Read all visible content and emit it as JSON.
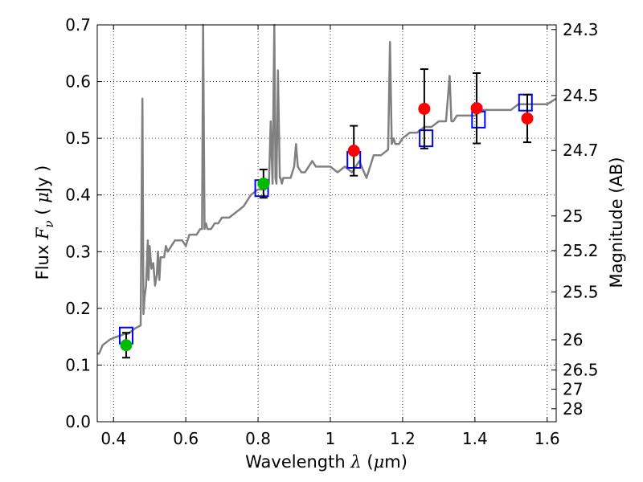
{
  "chart_data": {
    "type": "scatter",
    "xlabel": "Wavelength",
    "xlabel_symbol": "λ",
    "xlabel_unit_open": "(",
    "xlabel_unit_mu": "μ",
    "xlabel_unit_rest": "m)",
    "ylabel": "Flux",
    "ylabel_symbol": "F",
    "ylabel_subscript": "ν",
    "ylabel_unit_open": "(",
    "ylabel_unit_mu": "μ",
    "ylabel_unit_rest": "Jy )",
    "y2label": "Magnitude (AB)",
    "xlim": [
      0.355,
      1.625
    ],
    "ylim": [
      0.0,
      0.7
    ],
    "xticks": [
      {
        "value": 0.4,
        "label": "0.4"
      },
      {
        "value": 0.6,
        "label": "0.6"
      },
      {
        "value": 0.8,
        "label": "0.8"
      },
      {
        "value": 1.0,
        "label": "1"
      },
      {
        "value": 1.2,
        "label": "1.2"
      },
      {
        "value": 1.4,
        "label": "1.4"
      },
      {
        "value": 1.6,
        "label": "1.6"
      }
    ],
    "yticks": [
      {
        "value": 0.0,
        "label": "0.0"
      },
      {
        "value": 0.1,
        "label": "0.1"
      },
      {
        "value": 0.2,
        "label": "0.2"
      },
      {
        "value": 0.3,
        "label": "0.3"
      },
      {
        "value": 0.4,
        "label": "0.4"
      },
      {
        "value": 0.5,
        "label": "0.5"
      },
      {
        "value": 0.6,
        "label": "0.6"
      },
      {
        "value": 0.7,
        "label": "0.7"
      }
    ],
    "y2ticks": [
      {
        "mag": 24.3,
        "label": "24.3"
      },
      {
        "mag": 24.5,
        "label": "24.5"
      },
      {
        "mag": 24.7,
        "label": "24.7"
      },
      {
        "mag": 25.0,
        "label": "25"
      },
      {
        "mag": 25.2,
        "label": "25.2"
      },
      {
        "mag": 25.5,
        "label": "25.5"
      },
      {
        "mag": 26.0,
        "label": "26"
      },
      {
        "mag": 26.5,
        "label": "26.5"
      },
      {
        "mag": 27.0,
        "label": "27"
      },
      {
        "mag": 28.0,
        "label": "28"
      }
    ],
    "grid": true,
    "colors": {
      "spectrum": "#808080",
      "observed_optical": "#00bb00",
      "observed_nir": "#ff0000",
      "model": "#0000ff",
      "errorbar": "#000000"
    },
    "spectrum": {
      "x": [
        0.355,
        0.36,
        0.37,
        0.38,
        0.39,
        0.4,
        0.41,
        0.42,
        0.43,
        0.44,
        0.45,
        0.46,
        0.47,
        0.475,
        0.48,
        0.483,
        0.486,
        0.49,
        0.495,
        0.497,
        0.5,
        0.505,
        0.51,
        0.515,
        0.52,
        0.523,
        0.527,
        0.53,
        0.54,
        0.545,
        0.55,
        0.56,
        0.57,
        0.58,
        0.59,
        0.6,
        0.61,
        0.62,
        0.63,
        0.64,
        0.645,
        0.648,
        0.652,
        0.656,
        0.66,
        0.67,
        0.68,
        0.69,
        0.7,
        0.72,
        0.74,
        0.76,
        0.78,
        0.8,
        0.82,
        0.83,
        0.835,
        0.84,
        0.845,
        0.848,
        0.851,
        0.855,
        0.86,
        0.862,
        0.866,
        0.87,
        0.88,
        0.89,
        0.9,
        0.905,
        0.91,
        0.92,
        0.93,
        0.94,
        0.95,
        0.96,
        0.98,
        1.0,
        1.02,
        1.04,
        1.06,
        1.08,
        1.1,
        1.12,
        1.14,
        1.16,
        1.165,
        1.17,
        1.175,
        1.18,
        1.19,
        1.2,
        1.22,
        1.24,
        1.26,
        1.28,
        1.3,
        1.32,
        1.33,
        1.335,
        1.34,
        1.35,
        1.38,
        1.4,
        1.42,
        1.44,
        1.46,
        1.48,
        1.5,
        1.52,
        1.55,
        1.58,
        1.6,
        1.625
      ],
      "y": [
        0.12,
        0.12,
        0.135,
        0.14,
        0.145,
        0.148,
        0.15,
        0.152,
        0.155,
        0.155,
        0.16,
        0.165,
        0.168,
        0.17,
        0.57,
        0.19,
        0.22,
        0.24,
        0.32,
        0.25,
        0.31,
        0.27,
        0.28,
        0.24,
        0.26,
        0.3,
        0.25,
        0.29,
        0.29,
        0.31,
        0.3,
        0.31,
        0.32,
        0.32,
        0.32,
        0.31,
        0.33,
        0.33,
        0.33,
        0.34,
        0.34,
        0.7,
        0.34,
        0.35,
        0.34,
        0.34,
        0.35,
        0.35,
        0.36,
        0.36,
        0.37,
        0.38,
        0.4,
        0.41,
        0.41,
        0.42,
        0.53,
        0.42,
        0.7,
        0.43,
        0.42,
        0.62,
        0.43,
        0.43,
        0.42,
        0.43,
        0.43,
        0.43,
        0.45,
        0.49,
        0.45,
        0.44,
        0.44,
        0.45,
        0.46,
        0.45,
        0.45,
        0.45,
        0.44,
        0.45,
        0.44,
        0.46,
        0.43,
        0.47,
        0.47,
        0.48,
        0.67,
        0.49,
        0.5,
        0.49,
        0.49,
        0.5,
        0.51,
        0.51,
        0.52,
        0.52,
        0.53,
        0.53,
        0.61,
        0.53,
        0.53,
        0.54,
        0.54,
        0.54,
        0.55,
        0.55,
        0.55,
        0.55,
        0.55,
        0.56,
        0.56,
        0.56,
        0.56,
        0.57
      ]
    },
    "observed": [
      {
        "x": 0.435,
        "y": 0.135,
        "err": 0.022,
        "band": "optical"
      },
      {
        "x": 0.815,
        "y": 0.42,
        "err": 0.025,
        "band": "optical"
      },
      {
        "x": 1.065,
        "y": 0.478,
        "err": 0.044,
        "band": "nir"
      },
      {
        "x": 1.26,
        "y": 0.552,
        "err": 0.07,
        "band": "nir"
      },
      {
        "x": 1.405,
        "y": 0.553,
        "err": 0.062,
        "band": "nir"
      },
      {
        "x": 1.545,
        "y": 0.535,
        "err": 0.042,
        "band": "nir"
      }
    ],
    "model": [
      {
        "x": 0.435,
        "y": 0.152
      },
      {
        "x": 0.81,
        "y": 0.412
      },
      {
        "x": 1.065,
        "y": 0.462
      },
      {
        "x": 1.265,
        "y": 0.5
      },
      {
        "x": 1.41,
        "y": 0.533
      },
      {
        "x": 1.54,
        "y": 0.563
      }
    ]
  }
}
